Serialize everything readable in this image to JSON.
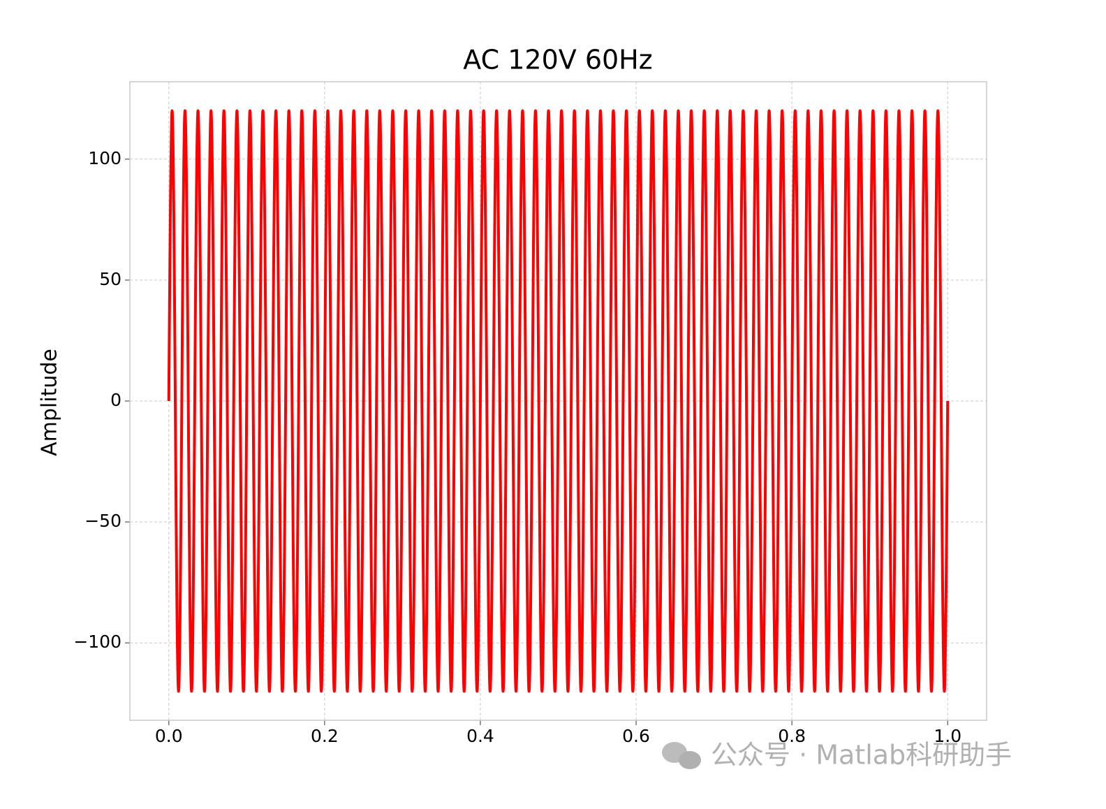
{
  "chart_data": {
    "type": "line",
    "title": "AC 120V 60Hz",
    "y_label": "Amplitude",
    "xlim": [
      -0.05,
      1.05
    ],
    "ylim": [
      -132,
      132
    ],
    "xticks": [
      {
        "value": 0,
        "label": "0.0"
      },
      0.2,
      0.4,
      0.6,
      0.8,
      {
        "value": 1,
        "label": "1.0"
      }
    ],
    "yticks": [
      {
        "value": -100,
        "label": "−100"
      },
      {
        "value": -50,
        "label": "−50"
      },
      0,
      50,
      100
    ],
    "grid": true,
    "x": [
      0,
      0.0042,
      0.0083,
      0.0125,
      0.0167,
      0.0208,
      0.025,
      0.0292,
      0.0333,
      0.0375,
      0.0417,
      0.0458,
      0.05,
      0.0542,
      0.0583,
      0.0625,
      0.0667,
      0.0708,
      0.075,
      0.0792,
      0.0833,
      0.0875,
      0.0917,
      0.0958,
      0.1,
      0.1042,
      0.1083,
      0.1125,
      0.1167,
      0.1208,
      0.125,
      0.1292,
      0.1333,
      0.1375,
      0.1417,
      0.1458,
      0.15,
      0.1542,
      0.1583,
      0.1625,
      0.1667,
      0.1708,
      0.175,
      0.1792,
      0.1833,
      0.1875,
      0.1917,
      0.1958,
      0.2,
      0.2042,
      0.2083,
      0.2125,
      0.2167,
      0.2208,
      0.225,
      0.2292,
      0.2333,
      0.2375,
      0.2417,
      0.2458,
      0.25,
      0.2542,
      0.2583,
      0.2625,
      0.2667,
      0.2708,
      0.275,
      0.2792,
      0.2833,
      0.2875,
      0.2917,
      0.2958,
      0.3,
      0.3042,
      0.3083,
      0.3125,
      0.3167,
      0.3208,
      0.325,
      0.3292,
      0.3333,
      0.3375,
      0.3417,
      0.3458,
      0.35,
      0.3542,
      0.3583,
      0.3625,
      0.3667,
      0.3708,
      0.375,
      0.3792,
      0.3833,
      0.3875,
      0.3917,
      0.3958,
      0.4,
      0.4042,
      0.4083,
      0.4125,
      0.4167,
      0.4208,
      0.425,
      0.4292,
      0.4333,
      0.4375,
      0.4417,
      0.4458,
      0.45,
      0.4542,
      0.4583,
      0.4625,
      0.4667,
      0.4708,
      0.475,
      0.4792,
      0.4833,
      0.4875,
      0.4917,
      0.4958,
      0.5,
      0.5042,
      0.5083,
      0.5125,
      0.5167,
      0.5208,
      0.525,
      0.5292,
      0.5333,
      0.5375,
      0.5417,
      0.5458,
      0.55,
      0.5542,
      0.5583,
      0.5625,
      0.5667,
      0.5708,
      0.575,
      0.5792,
      0.5833,
      0.5875,
      0.5917,
      0.5958,
      0.6,
      0.6042,
      0.6083,
      0.6125,
      0.6167,
      0.6208,
      0.625,
      0.6292,
      0.6333,
      0.6375,
      0.6417,
      0.6458,
      0.65,
      0.6542,
      0.6583,
      0.6625,
      0.6667,
      0.6708,
      0.675,
      0.6792,
      0.6833,
      0.6875,
      0.6917,
      0.6958,
      0.7,
      0.7042,
      0.7083,
      0.7125,
      0.7167,
      0.7208,
      0.725,
      0.7292,
      0.7333,
      0.7375,
      0.7417,
      0.7458,
      0.75,
      0.7542,
      0.7583,
      0.7625,
      0.7667,
      0.7708,
      0.775,
      0.7792,
      0.7833,
      0.7875,
      0.7917,
      0.7958,
      0.8,
      0.8042,
      0.8083,
      0.8125,
      0.8167,
      0.8208,
      0.825,
      0.8292,
      0.8333,
      0.8375,
      0.8417,
      0.8458,
      0.85,
      0.8542,
      0.8583,
      0.8625,
      0.8667,
      0.8708,
      0.875,
      0.8792,
      0.8833,
      0.8875,
      0.8917,
      0.8958,
      0.9,
      0.9042,
      0.9083,
      0.9125,
      0.9167,
      0.9208,
      0.925,
      0.9292,
      0.9333,
      0.9375,
      0.9417,
      0.9458,
      0.95,
      0.9542,
      0.9583,
      0.9625,
      0.9667,
      0.9708,
      0.975,
      0.9792,
      0.9833,
      0.9875,
      0.9917,
      0.9958,
      1
    ],
    "series": [
      {
        "name": "AC 120V 60Hz",
        "color": "#ff0000",
        "values": [
          0,
          120,
          0,
          -120,
          0,
          120,
          0,
          -120,
          0,
          120,
          0,
          -120,
          0,
          120,
          0,
          -120,
          0,
          120,
          0,
          -120,
          0,
          120,
          0,
          -120,
          0,
          120,
          0,
          -120,
          0,
          120,
          0,
          -120,
          0,
          120,
          0,
          -120,
          0,
          120,
          0,
          -120,
          0,
          120,
          0,
          -120,
          0,
          120,
          0,
          -120,
          0,
          120,
          0,
          -120,
          0,
          120,
          0,
          -120,
          0,
          120,
          0,
          -120,
          0,
          120,
          0,
          -120,
          0,
          120,
          0,
          -120,
          0,
          120,
          0,
          -120,
          0,
          120,
          0,
          -120,
          0,
          120,
          0,
          -120,
          0,
          120,
          0,
          -120,
          0,
          120,
          0,
          -120,
          0,
          120,
          0,
          -120,
          0,
          120,
          0,
          -120,
          0,
          120,
          0,
          -120,
          0,
          120,
          0,
          -120,
          0,
          120,
          0,
          -120,
          0,
          120,
          0,
          -120,
          0,
          120,
          0,
          -120,
          0,
          120,
          0,
          -120,
          0,
          120,
          0,
          -120,
          0,
          120,
          0,
          -120,
          0,
          120,
          0,
          -120,
          0,
          120,
          0,
          -120,
          0,
          120,
          0,
          -120,
          0,
          120,
          0,
          -120,
          0,
          120,
          0,
          -120,
          0,
          120,
          0,
          -120,
          0,
          120,
          0,
          -120,
          0,
          120,
          0,
          -120,
          0,
          120,
          0,
          -120,
          0,
          120,
          0,
          -120,
          0,
          120,
          0,
          -120,
          0,
          120,
          0,
          -120,
          0,
          120,
          0,
          -120,
          0,
          120,
          0,
          -120,
          0,
          120,
          0,
          -120,
          0,
          120,
          0,
          -120,
          0,
          120,
          0,
          -120,
          0,
          120,
          0,
          -120,
          0,
          120,
          0,
          -120,
          0,
          120,
          0,
          -120,
          0,
          120,
          0,
          -120,
          0,
          120,
          0,
          -120,
          0,
          120,
          0,
          -120,
          0,
          120,
          0,
          -120,
          0,
          120,
          0,
          -120,
          0,
          120,
          0,
          -120,
          0,
          120,
          0,
          -120,
          0,
          120,
          0,
          -120,
          0
        ]
      }
    ]
  },
  "watermark": "公众号 · Matlab科研助手"
}
